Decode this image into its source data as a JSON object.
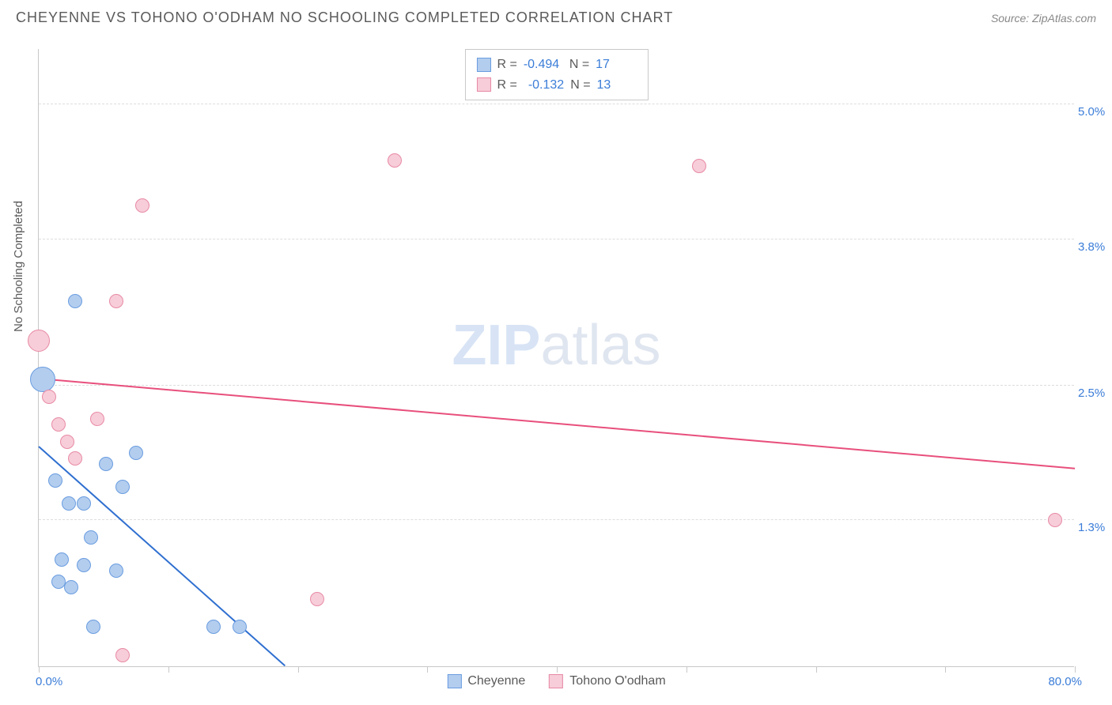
{
  "title": "CHEYENNE VS TOHONO O'ODHAM NO SCHOOLING COMPLETED CORRELATION CHART",
  "source": "Source: ZipAtlas.com",
  "ylabel": "No Schooling Completed",
  "watermark_bold": "ZIP",
  "watermark_light": "atlas",
  "chart": {
    "type": "scatter",
    "xlim": [
      0,
      80
    ],
    "ylim": [
      0,
      5.5
    ],
    "x_ticks": [
      0,
      10,
      20,
      30,
      40,
      50,
      60,
      70,
      80
    ],
    "y_gridlines": [
      1.3,
      2.5,
      3.8,
      5.0
    ],
    "x_min_label": "0.0%",
    "x_max_label": "80.0%",
    "y_tick_labels": [
      "1.3%",
      "2.5%",
      "3.8%",
      "5.0%"
    ],
    "background_color": "#ffffff",
    "grid_color": "#dddddd",
    "axis_color": "#c8c8c8",
    "tick_label_color": "#3b7dd8",
    "point_radius": 9,
    "series": [
      {
        "name": "Cheyenne",
        "fill_color": "#b3cdef",
        "stroke_color": "#6a9de0",
        "line_color": "#2f6fd0",
        "R": "-0.494",
        "N": "17",
        "trend": {
          "x1": 0,
          "y1": 1.95,
          "x2": 19,
          "y2": 0
        },
        "points": [
          {
            "x": 0.3,
            "y": 2.55,
            "r": 16
          },
          {
            "x": 2.8,
            "y": 3.25,
            "r": 9
          },
          {
            "x": 1.3,
            "y": 1.65,
            "r": 9
          },
          {
            "x": 2.3,
            "y": 1.45,
            "r": 9
          },
          {
            "x": 3.5,
            "y": 1.45,
            "r": 9
          },
          {
            "x": 5.2,
            "y": 1.8,
            "r": 9
          },
          {
            "x": 6.5,
            "y": 1.6,
            "r": 9
          },
          {
            "x": 4.0,
            "y": 1.15,
            "r": 9
          },
          {
            "x": 6.0,
            "y": 0.85,
            "r": 9
          },
          {
            "x": 1.8,
            "y": 0.95,
            "r": 9
          },
          {
            "x": 1.5,
            "y": 0.75,
            "r": 9
          },
          {
            "x": 2.5,
            "y": 0.7,
            "r": 9
          },
          {
            "x": 3.5,
            "y": 0.9,
            "r": 9
          },
          {
            "x": 4.2,
            "y": 0.35,
            "r": 9
          },
          {
            "x": 13.5,
            "y": 0.35,
            "r": 9
          },
          {
            "x": 15.5,
            "y": 0.35,
            "r": 9
          },
          {
            "x": 7.5,
            "y": 1.9,
            "r": 9
          }
        ]
      },
      {
        "name": "Tohono O'odham",
        "fill_color": "#f7cdd9",
        "stroke_color": "#e88aa5",
        "line_color": "#e84f7c",
        "R": "-0.132",
        "N": "13",
        "trend": {
          "x1": 0,
          "y1": 2.55,
          "x2": 80,
          "y2": 1.75
        },
        "points": [
          {
            "x": 0.0,
            "y": 2.9,
            "r": 14
          },
          {
            "x": 0.8,
            "y": 2.4,
            "r": 9
          },
          {
            "x": 1.5,
            "y": 2.15,
            "r": 9
          },
          {
            "x": 2.2,
            "y": 2.0,
            "r": 9
          },
          {
            "x": 2.8,
            "y": 1.85,
            "r": 9
          },
          {
            "x": 4.5,
            "y": 2.2,
            "r": 9
          },
          {
            "x": 6.0,
            "y": 3.25,
            "r": 9
          },
          {
            "x": 8.0,
            "y": 4.1,
            "r": 9
          },
          {
            "x": 27.5,
            "y": 4.5,
            "r": 9
          },
          {
            "x": 21.5,
            "y": 0.6,
            "r": 9
          },
          {
            "x": 6.5,
            "y": 0.1,
            "r": 9
          },
          {
            "x": 51.0,
            "y": 4.45,
            "r": 9
          },
          {
            "x": 78.5,
            "y": 1.3,
            "r": 9
          }
        ]
      }
    ]
  },
  "stats_labels": {
    "R": "R =",
    "N": "N ="
  },
  "legend_labels": [
    "Cheyenne",
    "Tohono O'odham"
  ]
}
